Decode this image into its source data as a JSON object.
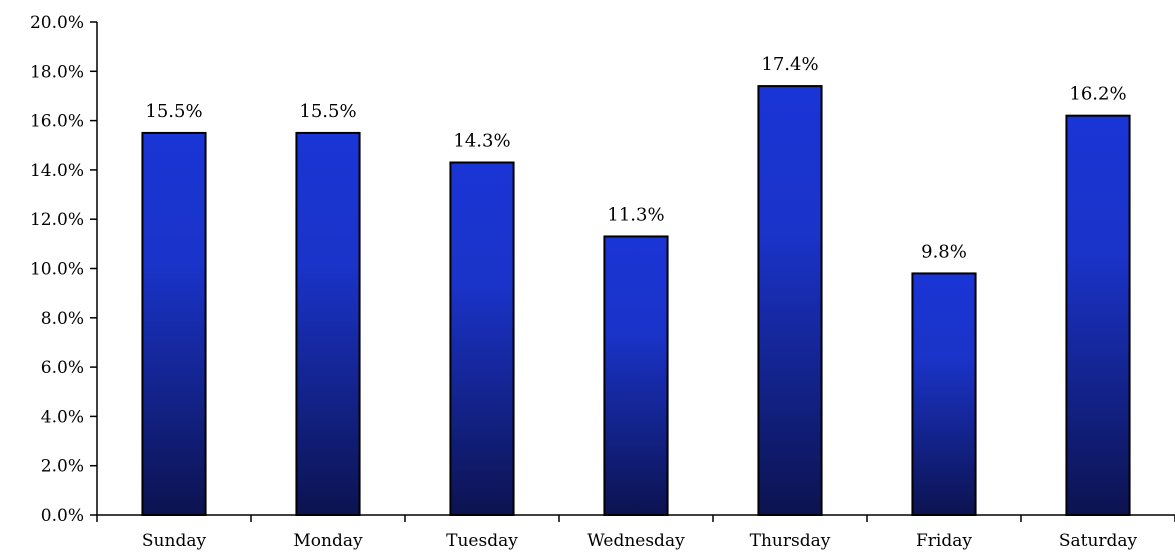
{
  "chart_data": {
    "type": "bar",
    "categories": [
      "Sunday",
      "Monday",
      "Tuesday",
      "Wednesday",
      "Thursday",
      "Friday",
      "Saturday"
    ],
    "values": [
      15.5,
      15.5,
      14.3,
      11.3,
      17.4,
      9.8,
      16.2
    ],
    "data_labels": [
      "15.5%",
      "15.5%",
      "14.3%",
      "11.3%",
      "17.4%",
      "9.8%",
      "16.2%"
    ],
    "title": "",
    "xlabel": "",
    "ylabel": "",
    "ylim": [
      0,
      20
    ],
    "y_ticks": [
      0,
      2,
      4,
      6,
      8,
      10,
      12,
      14,
      16,
      18,
      20
    ],
    "y_tick_labels": [
      "0.0%",
      "2.0%",
      "4.0%",
      "6.0%",
      "8.0%",
      "10.0%",
      "12.0%",
      "14.0%",
      "16.0%",
      "18.0%",
      "20.0%"
    ],
    "grid": false,
    "legend": "none",
    "colors": {
      "bar_top": "#1a35d6",
      "bar_bottom": "#0c1350",
      "bar_outline": "#000000",
      "axis": "#000000"
    }
  }
}
